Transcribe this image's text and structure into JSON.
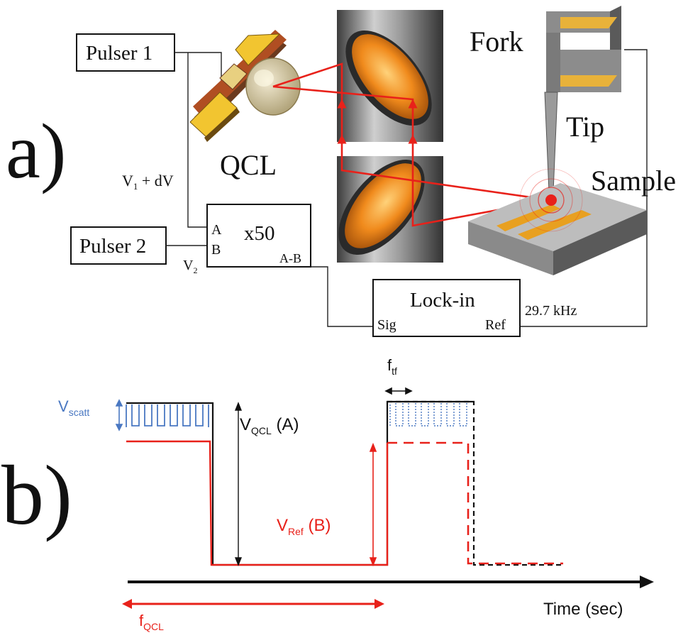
{
  "panel_a": {
    "label": "a)",
    "pulser1": "Pulser 1",
    "pulser2": "Pulser 2",
    "qcl": "QCL",
    "fork": "Fork",
    "tip": "Tip",
    "sample": "Sample",
    "amp": {
      "gain": "x50",
      "in_a": "A",
      "in_b": "B",
      "out": "A-B"
    },
    "v1": "V",
    "v1_sub": "1",
    "v1_rest": " + dV",
    "v2": "V",
    "v2_sub": "2",
    "lockin": {
      "title": "Lock-in",
      "sig": "Sig",
      "ref": "Ref"
    },
    "ref_freq": "29.7 kHz"
  },
  "panel_b": {
    "label": "b)",
    "vscatt": "V",
    "vscatt_sub": "scatt",
    "vqcl": "V",
    "vqcl_sub": "QCL",
    "vqcl_tail": " (A)",
    "vref": "V",
    "vref_sub": "Ref",
    "vref_tail": " (B)",
    "ftf": "f",
    "ftf_sub": "tf",
    "fqcl": "f",
    "fqcl_sub": "QCL",
    "time_axis": "Time (sec)"
  },
  "colors": {
    "laser": "#e8211a",
    "scatter_blue": "#4a78c2",
    "mirror_orange": "#f08a1c",
    "electrode_gold": "#e8b23a",
    "body_gray": "#8c8c8c"
  }
}
